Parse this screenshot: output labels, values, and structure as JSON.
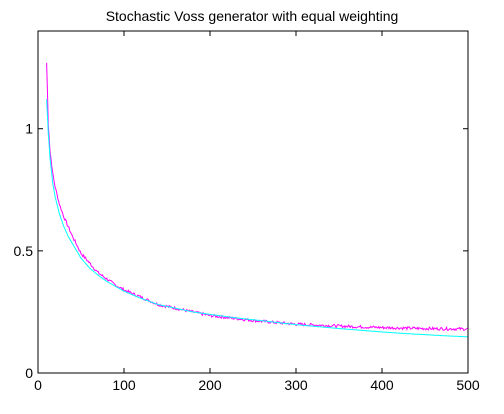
{
  "chart_data": {
    "type": "line",
    "title": "Stochastic Voss generator with equal weighting",
    "xlabel": "",
    "ylabel": "",
    "xlim": [
      0,
      500
    ],
    "ylim": [
      0,
      1.4
    ],
    "x_ticks": [
      0,
      100,
      200,
      300,
      400,
      500
    ],
    "x_tick_labels": [
      "0",
      "100",
      "200",
      "300",
      "400",
      "500"
    ],
    "y_ticks": [
      0,
      0.5,
      1
    ],
    "y_tick_labels": [
      "0",
      "0.5",
      "1"
    ],
    "grid": false,
    "legend": "none",
    "box": true,
    "series": [
      {
        "color": "#ff00ff",
        "noise": true,
        "x": [
          10,
          12,
          14,
          17,
          20,
          25,
          30,
          35,
          40,
          50,
          60,
          70,
          80,
          90,
          100,
          120,
          140,
          160,
          180,
          200,
          225,
          250,
          275,
          300,
          325,
          350,
          375,
          400,
          425,
          450,
          475,
          500
        ],
        "y": [
          1.27,
          1.02,
          0.91,
          0.82,
          0.76,
          0.69,
          0.64,
          0.6,
          0.56,
          0.49,
          0.45,
          0.41,
          0.385,
          0.36,
          0.34,
          0.31,
          0.28,
          0.265,
          0.25,
          0.235,
          0.225,
          0.215,
          0.207,
          0.2,
          0.196,
          0.192,
          0.189,
          0.186,
          0.184,
          0.182,
          0.181,
          0.18
        ]
      },
      {
        "color": "#00ffff",
        "noise": false,
        "x": [
          10,
          12,
          14,
          17,
          20,
          25,
          30,
          35,
          40,
          50,
          60,
          70,
          80,
          90,
          100,
          120,
          140,
          160,
          180,
          200,
          225,
          250,
          275,
          300,
          325,
          350,
          375,
          400,
          425,
          450,
          475,
          500
        ],
        "y": [
          1.12,
          0.98,
          0.88,
          0.78,
          0.72,
          0.65,
          0.6,
          0.56,
          0.53,
          0.47,
          0.43,
          0.4,
          0.375,
          0.355,
          0.335,
          0.305,
          0.28,
          0.265,
          0.25,
          0.24,
          0.228,
          0.218,
          0.208,
          0.198,
          0.19,
          0.182,
          0.175,
          0.168,
          0.162,
          0.157,
          0.152,
          0.148
        ]
      }
    ]
  }
}
